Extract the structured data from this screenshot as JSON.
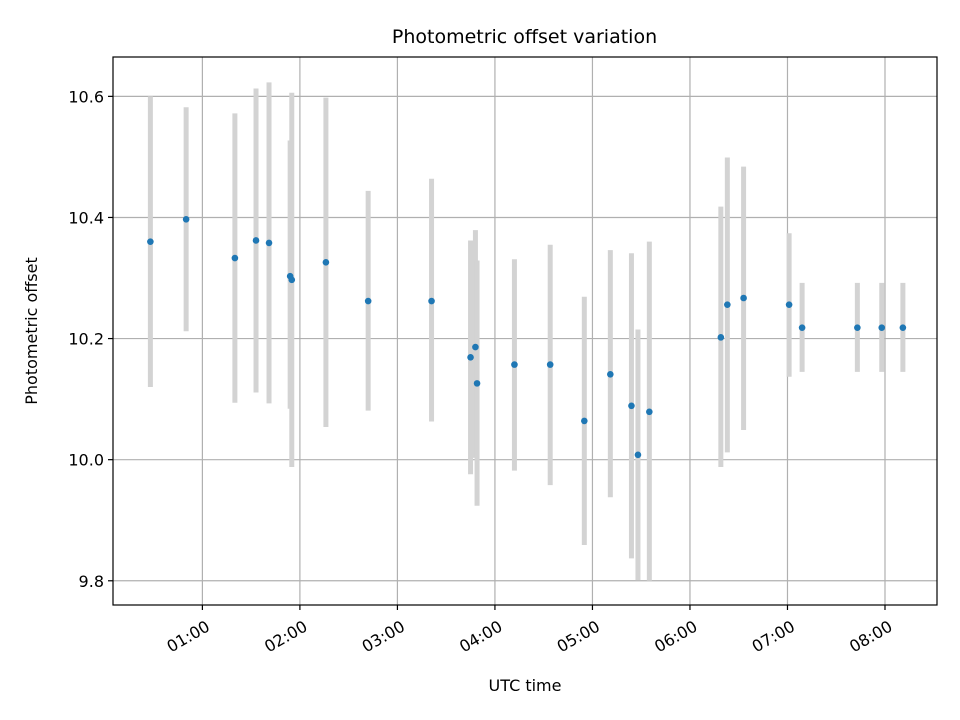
{
  "chart_data": {
    "type": "scatter",
    "title": "Photometric offset variation",
    "xlabel": "UTC time",
    "ylabel": "Photometric offset",
    "x_tick_labels": [
      "01:00",
      "02:00",
      "03:00",
      "04:00",
      "05:00",
      "06:00",
      "07:00",
      "08:00"
    ],
    "y_tick_labels": [
      "9.8",
      "10.0",
      "10.2",
      "10.4",
      "10.6"
    ],
    "x_ticks": [
      "01:00",
      "02:00",
      "03:00",
      "04:00",
      "05:00",
      "06:00",
      "07:00",
      "08:00"
    ],
    "y_ticks": [
      9.8,
      10.0,
      10.2,
      10.4,
      10.6
    ],
    "xlim": [
      "00:05",
      "08:32"
    ],
    "ylim": [
      9.76,
      10.665
    ],
    "grid": true,
    "colors": {
      "points": "#1f77b4",
      "errorbars": "#d3d3d3",
      "grid": "#b0b0b0"
    },
    "points": [
      {
        "x": "00:28",
        "y": 10.36,
        "yerr_low": 10.12,
        "yerr_high": 10.6
      },
      {
        "x": "00:50",
        "y": 10.397,
        "yerr_low": 10.212,
        "yerr_high": 10.582
      },
      {
        "x": "01:20",
        "y": 10.333,
        "yerr_low": 10.094,
        "yerr_high": 10.572
      },
      {
        "x": "01:33",
        "y": 10.362,
        "yerr_low": 10.111,
        "yerr_high": 10.613
      },
      {
        "x": "01:41",
        "y": 10.358,
        "yerr_low": 10.093,
        "yerr_high": 10.623
      },
      {
        "x": "01:54",
        "y": 10.303,
        "yerr_low": 10.084,
        "yerr_high": 10.527
      },
      {
        "x": "01:55",
        "y": 10.297,
        "yerr_low": 9.988,
        "yerr_high": 10.606
      },
      {
        "x": "02:16",
        "y": 10.326,
        "yerr_low": 10.054,
        "yerr_high": 10.598
      },
      {
        "x": "02:42",
        "y": 10.262,
        "yerr_low": 10.081,
        "yerr_high": 10.444
      },
      {
        "x": "03:21",
        "y": 10.262,
        "yerr_low": 10.063,
        "yerr_high": 10.464
      },
      {
        "x": "03:45",
        "y": 10.169,
        "yerr_low": 9.976,
        "yerr_high": 10.362
      },
      {
        "x": "03:48",
        "y": 10.186,
        "yerr_low": 10.003,
        "yerr_high": 10.379
      },
      {
        "x": "03:49",
        "y": 10.126,
        "yerr_low": 9.924,
        "yerr_high": 10.329
      },
      {
        "x": "04:12",
        "y": 10.157,
        "yerr_low": 9.982,
        "yerr_high": 10.331
      },
      {
        "x": "04:34",
        "y": 10.157,
        "yerr_low": 9.958,
        "yerr_high": 10.355
      },
      {
        "x": "04:55",
        "y": 10.064,
        "yerr_low": 9.859,
        "yerr_high": 10.269
      },
      {
        "x": "05:11",
        "y": 10.141,
        "yerr_low": 9.938,
        "yerr_high": 10.346
      },
      {
        "x": "05:24",
        "y": 10.089,
        "yerr_low": 9.837,
        "yerr_high": 10.341
      },
      {
        "x": "05:28",
        "y": 10.008,
        "yerr_low": 9.801,
        "yerr_high": 10.215
      },
      {
        "x": "05:35",
        "y": 10.079,
        "yerr_low": 9.8,
        "yerr_high": 10.36
      },
      {
        "x": "06:19",
        "y": 10.202,
        "yerr_low": 9.988,
        "yerr_high": 10.418
      },
      {
        "x": "06:23",
        "y": 10.256,
        "yerr_low": 10.012,
        "yerr_high": 10.499
      },
      {
        "x": "06:33",
        "y": 10.267,
        "yerr_low": 10.049,
        "yerr_high": 10.484
      },
      {
        "x": "07:01",
        "y": 10.256,
        "yerr_low": 10.137,
        "yerr_high": 10.374
      },
      {
        "x": "07:09",
        "y": 10.218,
        "yerr_low": 10.145,
        "yerr_high": 10.292
      },
      {
        "x": "07:43",
        "y": 10.218,
        "yerr_low": 10.145,
        "yerr_high": 10.292
      },
      {
        "x": "07:58",
        "y": 10.218,
        "yerr_low": 10.145,
        "yerr_high": 10.292
      },
      {
        "x": "08:11",
        "y": 10.218,
        "yerr_low": 10.145,
        "yerr_high": 10.292
      }
    ]
  }
}
